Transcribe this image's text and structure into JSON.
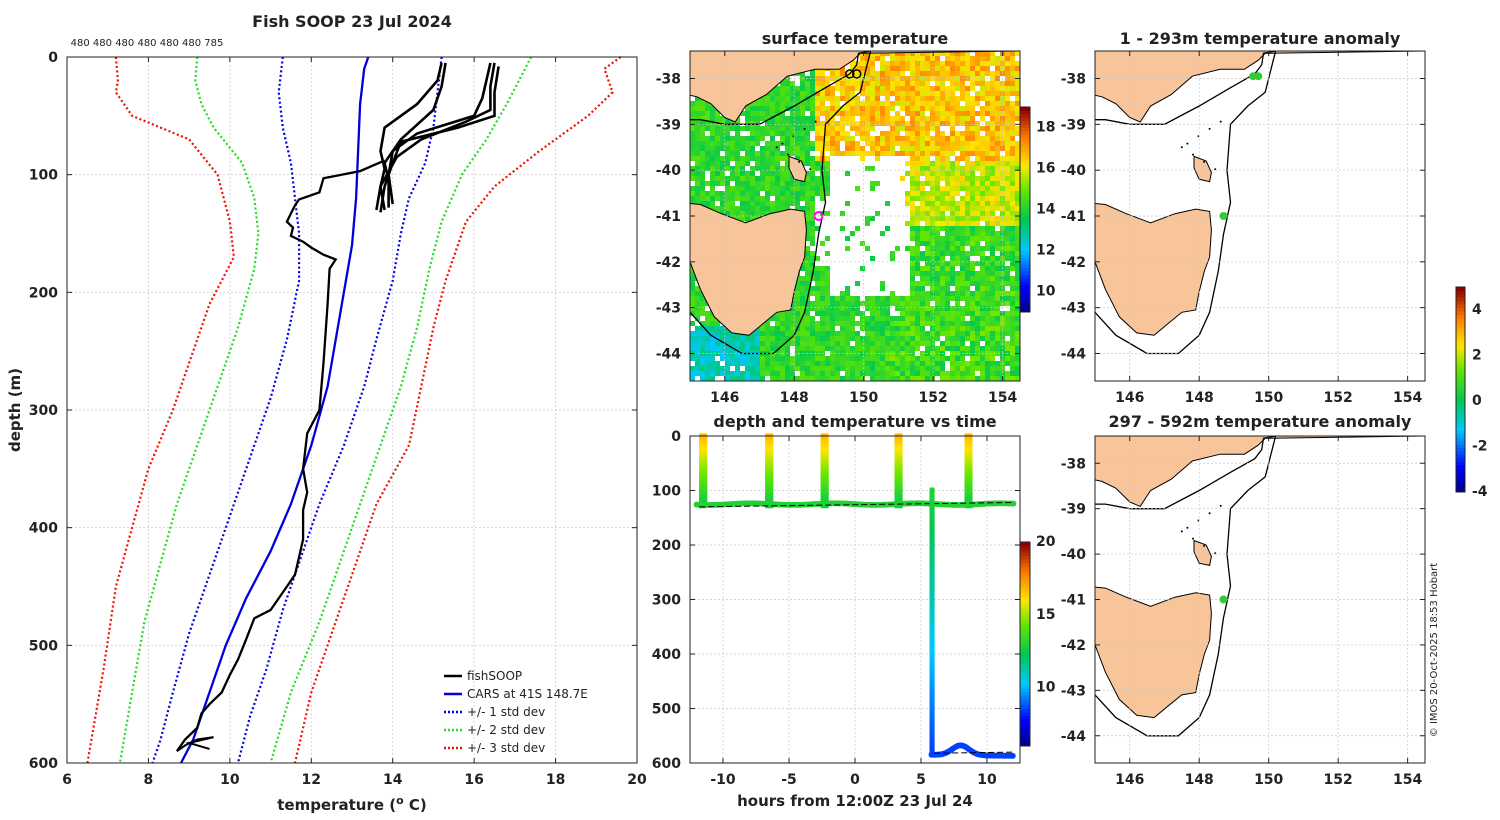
{
  "chart_data": [
    {
      "id": "profile",
      "type": "line",
      "title": "Fish SOOP 23 Jul 2024",
      "xlabel_text": "temperature (",
      "xlabel_sup": "o",
      "xlabel_end": " C)",
      "ylabel": "depth (m)",
      "xlim": [
        6,
        20
      ],
      "ylim": [
        0,
        600
      ],
      "xticks": [
        6,
        8,
        10,
        12,
        14,
        16,
        18,
        20
      ],
      "yticks": [
        0,
        100,
        200,
        300,
        400,
        500,
        600
      ],
      "top_labels": [
        "480",
        "480",
        "480",
        "480",
        "480",
        "480",
        "785"
      ],
      "legend": [
        {
          "label": "fishSOOP",
          "color": "#000000",
          "style": "solid"
        },
        {
          "label": "CARS at 41S 148.7E",
          "color": "#0000dd",
          "style": "solid"
        },
        {
          "label": "+/- 1 std dev",
          "color": "#0000dd",
          "style": "dotted"
        },
        {
          "label": "+/- 2 std dev",
          "color": "#22dd22",
          "style": "dotted"
        },
        {
          "label": "+/- 3 std dev",
          "color": "#ee1100",
          "style": "dotted"
        }
      ],
      "series": [
        {
          "name": "CARS",
          "color": "#0000dd",
          "dash": false,
          "points": [
            [
              13.4,
              0
            ],
            [
              13.3,
              10
            ],
            [
              13.2,
              40
            ],
            [
              13.15,
              80
            ],
            [
              13.1,
              120
            ],
            [
              13.0,
              160
            ],
            [
              12.7,
              220
            ],
            [
              12.4,
              280
            ],
            [
              12.0,
              330
            ],
            [
              11.5,
              380
            ],
            [
              11.0,
              420
            ],
            [
              10.4,
              460
            ],
            [
              9.9,
              500
            ],
            [
              9.5,
              540
            ],
            [
              9.1,
              580
            ],
            [
              8.8,
              600
            ]
          ]
        },
        {
          "name": "cars_plus1",
          "color": "#0000dd",
          "dash": true,
          "points": [
            [
              15.2,
              0
            ],
            [
              15.1,
              30
            ],
            [
              15.0,
              60
            ],
            [
              14.8,
              90
            ],
            [
              14.4,
              120
            ],
            [
              14.2,
              150
            ],
            [
              14.0,
              190
            ],
            [
              13.6,
              240
            ],
            [
              13.3,
              280
            ],
            [
              12.8,
              330
            ],
            [
              12.2,
              380
            ],
            [
              11.8,
              420
            ],
            [
              11.3,
              470
            ],
            [
              10.9,
              520
            ],
            [
              10.5,
              560
            ],
            [
              10.2,
              600
            ]
          ]
        },
        {
          "name": "cars_minus1",
          "color": "#0000dd",
          "dash": true,
          "points": [
            [
              11.3,
              0
            ],
            [
              11.2,
              30
            ],
            [
              11.3,
              60
            ],
            [
              11.5,
              90
            ],
            [
              11.6,
              120
            ],
            [
              11.7,
              150
            ],
            [
              11.7,
              190
            ],
            [
              11.4,
              240
            ],
            [
              11.0,
              290
            ],
            [
              10.5,
              340
            ],
            [
              10.0,
              390
            ],
            [
              9.5,
              440
            ],
            [
              9.0,
              490
            ],
            [
              8.6,
              540
            ],
            [
              8.3,
              580
            ],
            [
              8.1,
              600
            ]
          ]
        },
        {
          "name": "cars_plus2",
          "color": "#22dd22",
          "dash": true,
          "points": [
            [
              17.4,
              0
            ],
            [
              17.1,
              20
            ],
            [
              16.8,
              40
            ],
            [
              16.3,
              70
            ],
            [
              15.7,
              100
            ],
            [
              15.2,
              140
            ],
            [
              14.9,
              180
            ],
            [
              14.6,
              230
            ],
            [
              14.2,
              280
            ],
            [
              13.7,
              330
            ],
            [
              13.2,
              380
            ],
            [
              12.7,
              430
            ],
            [
              12.2,
              480
            ],
            [
              11.5,
              540
            ],
            [
              11.0,
              600
            ]
          ]
        },
        {
          "name": "cars_minus2",
          "color": "#22dd22",
          "dash": true,
          "points": [
            [
              9.2,
              0
            ],
            [
              9.15,
              20
            ],
            [
              9.3,
              40
            ],
            [
              9.6,
              60
            ],
            [
              10.3,
              90
            ],
            [
              10.6,
              120
            ],
            [
              10.7,
              150
            ],
            [
              10.6,
              180
            ],
            [
              10.2,
              230
            ],
            [
              9.7,
              280
            ],
            [
              9.2,
              330
            ],
            [
              8.7,
              380
            ],
            [
              8.3,
              430
            ],
            [
              7.9,
              480
            ],
            [
              7.6,
              540
            ],
            [
              7.3,
              600
            ]
          ]
        },
        {
          "name": "cars_plus3",
          "color": "#ee1100",
          "dash": true,
          "points": [
            [
              19.6,
              0
            ],
            [
              19.2,
              10
            ],
            [
              19.4,
              30
            ],
            [
              18.8,
              50
            ],
            [
              17.6,
              80
            ],
            [
              16.5,
              110
            ],
            [
              15.8,
              140
            ],
            [
              15.3,
              190
            ],
            [
              15.0,
              230
            ],
            [
              14.7,
              280
            ],
            [
              14.4,
              330
            ],
            [
              13.6,
              380
            ],
            [
              13.1,
              430
            ],
            [
              12.6,
              480
            ],
            [
              12.0,
              540
            ],
            [
              11.6,
              600
            ]
          ]
        },
        {
          "name": "cars_minus3",
          "color": "#ee1100",
          "dash": true,
          "points": [
            [
              7.2,
              0
            ],
            [
              7.25,
              20
            ],
            [
              7.2,
              30
            ],
            [
              7.6,
              50
            ],
            [
              9.0,
              70
            ],
            [
              9.7,
              100
            ],
            [
              10.0,
              140
            ],
            [
              10.1,
              170
            ],
            [
              9.5,
              210
            ],
            [
              9.0,
              260
            ],
            [
              8.6,
              300
            ],
            [
              8.0,
              350
            ],
            [
              7.6,
              400
            ],
            [
              7.2,
              450
            ],
            [
              6.9,
              520
            ],
            [
              6.5,
              600
            ]
          ]
        },
        {
          "name": "fishSOOP_deep",
          "color": "#000000",
          "dash": false,
          "points": [
            [
              13.8,
              88
            ],
            [
              13.2,
              97
            ],
            [
              12.3,
              103
            ],
            [
              12.2,
              115
            ],
            [
              11.7,
              121
            ],
            [
              11.6,
              126
            ],
            [
              11.5,
              133
            ],
            [
              11.4,
              140
            ],
            [
              11.55,
              145
            ],
            [
              11.5,
              152
            ],
            [
              11.8,
              157
            ],
            [
              12.0,
              162
            ],
            [
              12.3,
              168
            ],
            [
              12.6,
              172
            ],
            [
              12.45,
              180
            ],
            [
              12.4,
              210
            ],
            [
              12.3,
              260
            ],
            [
              12.2,
              300
            ],
            [
              11.9,
              320
            ],
            [
              11.8,
              350
            ],
            [
              11.9,
              370
            ],
            [
              11.8,
              385
            ],
            [
              11.8,
              410
            ],
            [
              11.6,
              440
            ],
            [
              11.4,
              450
            ],
            [
              11.0,
              470
            ],
            [
              10.6,
              477
            ],
            [
              10.4,
              495
            ],
            [
              10.2,
              512
            ],
            [
              10.0,
              525
            ],
            [
              9.8,
              540
            ],
            [
              9.5,
              550
            ],
            [
              9.3,
              558
            ],
            [
              9.2,
              570
            ],
            [
              8.9,
              580
            ],
            [
              8.7,
              590
            ]
          ]
        }
      ],
      "casts": [
        [
          [
            15.2,
            5
          ],
          [
            15.1,
            20
          ],
          [
            14.6,
            40
          ],
          [
            13.8,
            60
          ],
          [
            13.7,
            80
          ],
          [
            13.8,
            95
          ],
          [
            13.7,
            110
          ],
          [
            13.8,
            130
          ]
        ],
        [
          [
            15.3,
            5
          ],
          [
            15.2,
            25
          ],
          [
            15.0,
            45
          ],
          [
            14.2,
            70
          ],
          [
            13.8,
            90
          ],
          [
            13.9,
            105
          ],
          [
            13.9,
            128
          ]
        ],
        [
          [
            16.4,
            5
          ],
          [
            16.3,
            20
          ],
          [
            16.2,
            35
          ],
          [
            16.0,
            50
          ],
          [
            14.6,
            65
          ],
          [
            14.0,
            80
          ],
          [
            13.9,
            100
          ],
          [
            14.0,
            125
          ]
        ],
        [
          [
            16.5,
            5
          ],
          [
            16.4,
            25
          ],
          [
            16.4,
            45
          ],
          [
            15.8,
            55
          ],
          [
            14.7,
            70
          ],
          [
            14.1,
            85
          ],
          [
            13.7,
            110
          ],
          [
            13.6,
            130
          ]
        ],
        [
          [
            16.6,
            8
          ],
          [
            16.5,
            30
          ],
          [
            16.5,
            50
          ],
          [
            15.6,
            60
          ],
          [
            14.2,
            72
          ],
          [
            14.0,
            90
          ],
          [
            13.8,
            110
          ],
          [
            13.7,
            132
          ]
        ]
      ]
    },
    {
      "id": "sst_map",
      "type": "heatmap",
      "title": "surface temperature",
      "xlim": [
        145,
        154.5
      ],
      "ylim": [
        -44.6,
        -37.4
      ],
      "xticks": [
        146,
        148,
        150,
        152,
        154
      ],
      "yticks": [
        -38,
        -39,
        -40,
        -41,
        -42,
        -43,
        -44
      ],
      "colorbar_range": [
        9,
        19
      ],
      "colorbar_ticks": [
        10,
        12,
        14,
        16,
        18
      ],
      "marker": [
        148.7,
        -41.0
      ]
    },
    {
      "id": "time_panel",
      "type": "scatter",
      "title": "depth and temperature vs time",
      "xlabel": "hours from 12:00Z 23 Jul 24",
      "xlim": [
        -12.5,
        12.5
      ],
      "ylim": [
        0,
        600
      ],
      "xticks": [
        -10,
        -5,
        0,
        5,
        10
      ],
      "yticks": [
        0,
        100,
        200,
        300,
        400,
        500,
        600
      ],
      "colorbar_range": [
        6,
        20
      ],
      "colorbar_ticks": [
        10,
        15,
        20
      ],
      "cast_times": [
        -11.5,
        -6.5,
        -2.3,
        3.3,
        8.6
      ],
      "deep_cast_time": 5.8,
      "bottom_depth": 130
    },
    {
      "id": "anom_shallow",
      "type": "scatter",
      "title": "1 - 293m temperature anomaly",
      "xlim": [
        145,
        154.5
      ],
      "ylim": [
        -44.6,
        -37.4
      ],
      "xticks": [
        146,
        148,
        150,
        152,
        154
      ],
      "yticks": [
        -38,
        -39,
        -40,
        -41,
        -42,
        -43,
        -44
      ],
      "points": [
        [
          149.55,
          -37.95
        ],
        [
          149.7,
          -37.95
        ],
        [
          148.7,
          -41.0
        ]
      ]
    },
    {
      "id": "anom_deep",
      "type": "scatter",
      "title": "297 - 592m temperature anomaly",
      "xlim": [
        145,
        154.5
      ],
      "ylim": [
        -44.6,
        -37.4
      ],
      "xticks": [
        146,
        148,
        150,
        152,
        154
      ],
      "yticks": [
        -38,
        -39,
        -40,
        -41,
        -42,
        -43,
        -44
      ],
      "points": [
        [
          148.7,
          -41.0
        ]
      ],
      "colorbar_range": [
        -4,
        5
      ],
      "colorbar_ticks": [
        -4,
        -2,
        0,
        2,
        4
      ]
    }
  ],
  "credit": "© IMOS 20-Oct-2025 18:53 Hobart"
}
